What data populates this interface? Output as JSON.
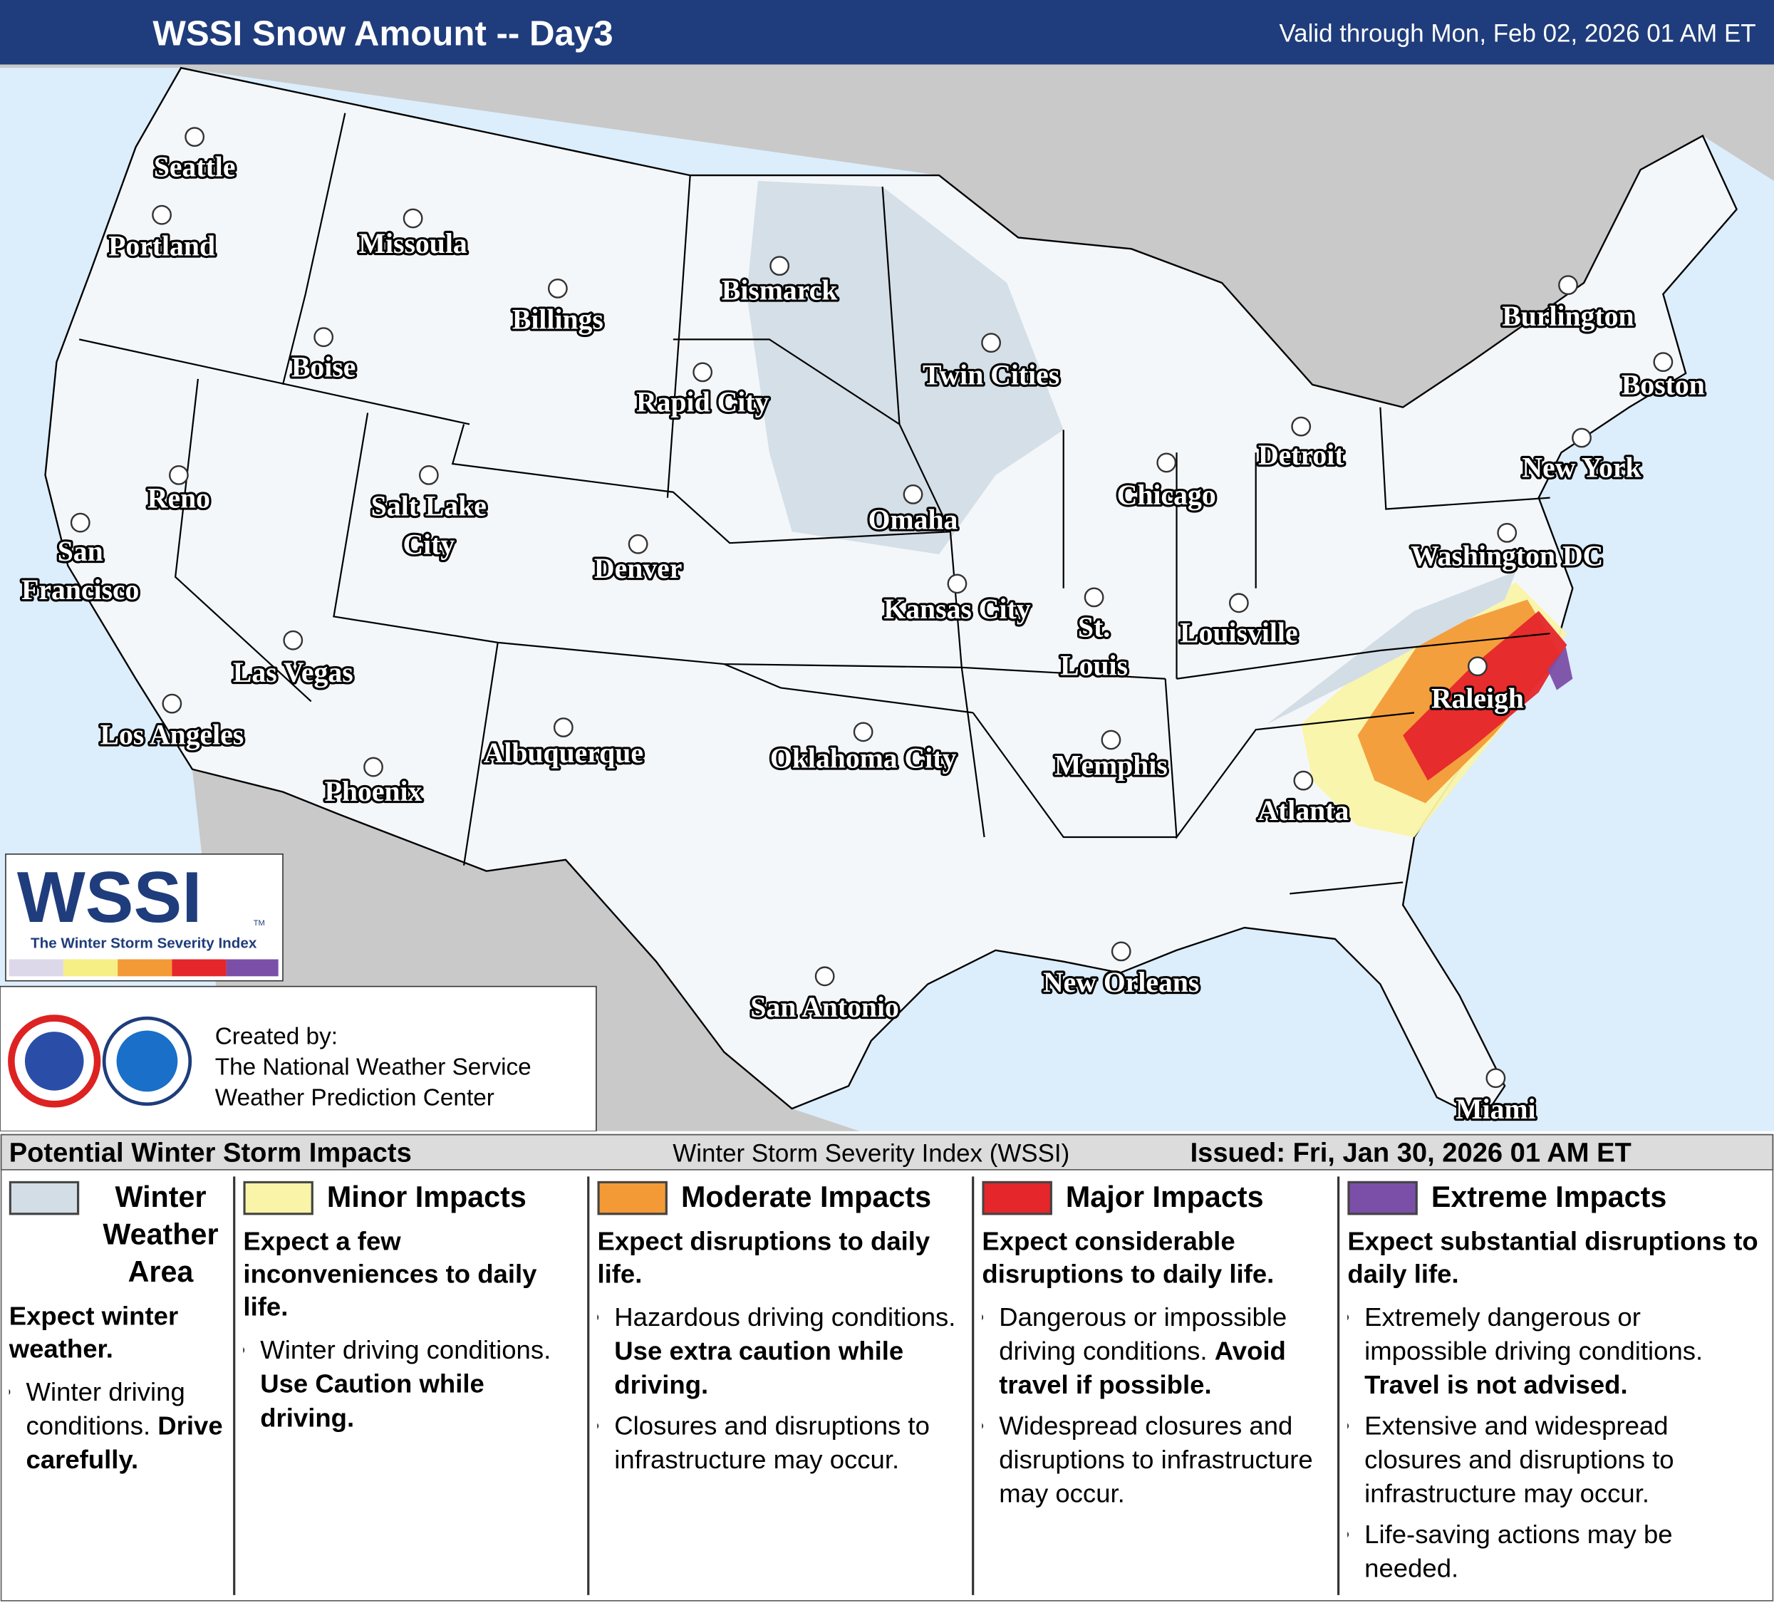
{
  "header": {
    "title": "WSSI Snow Amount -- Day3",
    "valid": "Valid through Mon, Feb 02, 2026 01 AM ET"
  },
  "cities": [
    {
      "label": [
        "Seattle"
      ]
    },
    {
      "label": [
        "Portland"
      ]
    },
    {
      "label": [
        "Missoula"
      ]
    },
    {
      "label": [
        "Billings"
      ]
    },
    {
      "label": [
        "Bismarck"
      ]
    },
    {
      "label": [
        "Boise"
      ]
    },
    {
      "label": [
        "Rapid City"
      ]
    },
    {
      "label": [
        "Twin Cities"
      ]
    },
    {
      "label": [
        "Burlington"
      ]
    },
    {
      "label": [
        "Boston"
      ]
    },
    {
      "label": [
        "Detroit"
      ]
    },
    {
      "label": [
        "New York"
      ]
    },
    {
      "label": [
        "Reno"
      ]
    },
    {
      "label": [
        "Salt Lake",
        "City"
      ]
    },
    {
      "label": [
        "Chicago"
      ]
    },
    {
      "label": [
        "Omaha"
      ]
    },
    {
      "label": [
        "Washington DC"
      ]
    },
    {
      "label": [
        "San",
        "Francisco"
      ]
    },
    {
      "label": [
        "Denver"
      ]
    },
    {
      "label": [
        "Kansas City"
      ]
    },
    {
      "label": [
        "St.",
        "Louis"
      ]
    },
    {
      "label": [
        "Louisville"
      ]
    },
    {
      "label": [
        "Raleigh"
      ]
    },
    {
      "label": [
        "Las Vegas"
      ]
    },
    {
      "label": [
        "Los Angeles"
      ]
    },
    {
      "label": [
        "Albuquerque"
      ]
    },
    {
      "label": [
        "Oklahoma City"
      ]
    },
    {
      "label": [
        "Memphis"
      ]
    },
    {
      "label": [
        "Atlanta"
      ]
    },
    {
      "label": [
        "Phoenix"
      ]
    },
    {
      "label": [
        "New Orleans"
      ]
    },
    {
      "label": [
        "San Antonio"
      ]
    },
    {
      "label": [
        "Miami"
      ]
    }
  ],
  "logo": {
    "title": "WSSI",
    "tm": "TM",
    "subtitle": "The Winter Storm Severity Index"
  },
  "credits": {
    "heading": "Created by:",
    "lines": [
      "The National Weather Service",
      "Weather Prediction Center"
    ]
  },
  "legend": {
    "title": "Potential Winter Storm Impacts",
    "subtitle": "Winter Storm Severity Index (WSSI)",
    "issued": "Issued: Fri, Jan 30, 2026 01 AM ET",
    "categories": [
      {
        "name": "Winter Weather Area",
        "color": "#d3dde6",
        "summary": "Expect winter weather.",
        "bullets": [
          {
            "text": "Winter driving conditions.",
            "bold": "Drive carefully."
          }
        ]
      },
      {
        "name": "Minor Impacts",
        "color": "#f9f4a8",
        "summary": "Expect a few inconveniences to daily life.",
        "bullets": [
          {
            "text": "Winter driving conditions.",
            "bold": "Use Caution while driving."
          }
        ]
      },
      {
        "name": "Moderate Impacts",
        "color": "#f39a37",
        "summary": "Expect disruptions to daily life.",
        "bullets": [
          {
            "text": "Hazardous driving conditions.",
            "bold": "Use extra caution while driving."
          },
          {
            "text": "Closures and disruptions to infrastructure may occur."
          }
        ]
      },
      {
        "name": "Major Impacts",
        "color": "#e5262b",
        "summary": "Expect considerable disruptions to daily life.",
        "bullets": [
          {
            "text": "Dangerous or impossible driving conditions.",
            "bold": "Avoid travel if possible."
          },
          {
            "text": "Widespread closures and disruptions to infrastructure may occur."
          }
        ]
      },
      {
        "name": "Extreme Impacts",
        "color": "#7b4fa8",
        "summary": "Expect substantial disruptions to daily life.",
        "bullets": [
          {
            "text": "Extremely dangerous or impossible driving conditions.",
            "bold": "Travel is not advised."
          },
          {
            "text": "Extensive and widespread closures and disruptions to infrastructure may occur."
          },
          {
            "text": "Life-saving actions may be needed."
          }
        ]
      }
    ]
  }
}
